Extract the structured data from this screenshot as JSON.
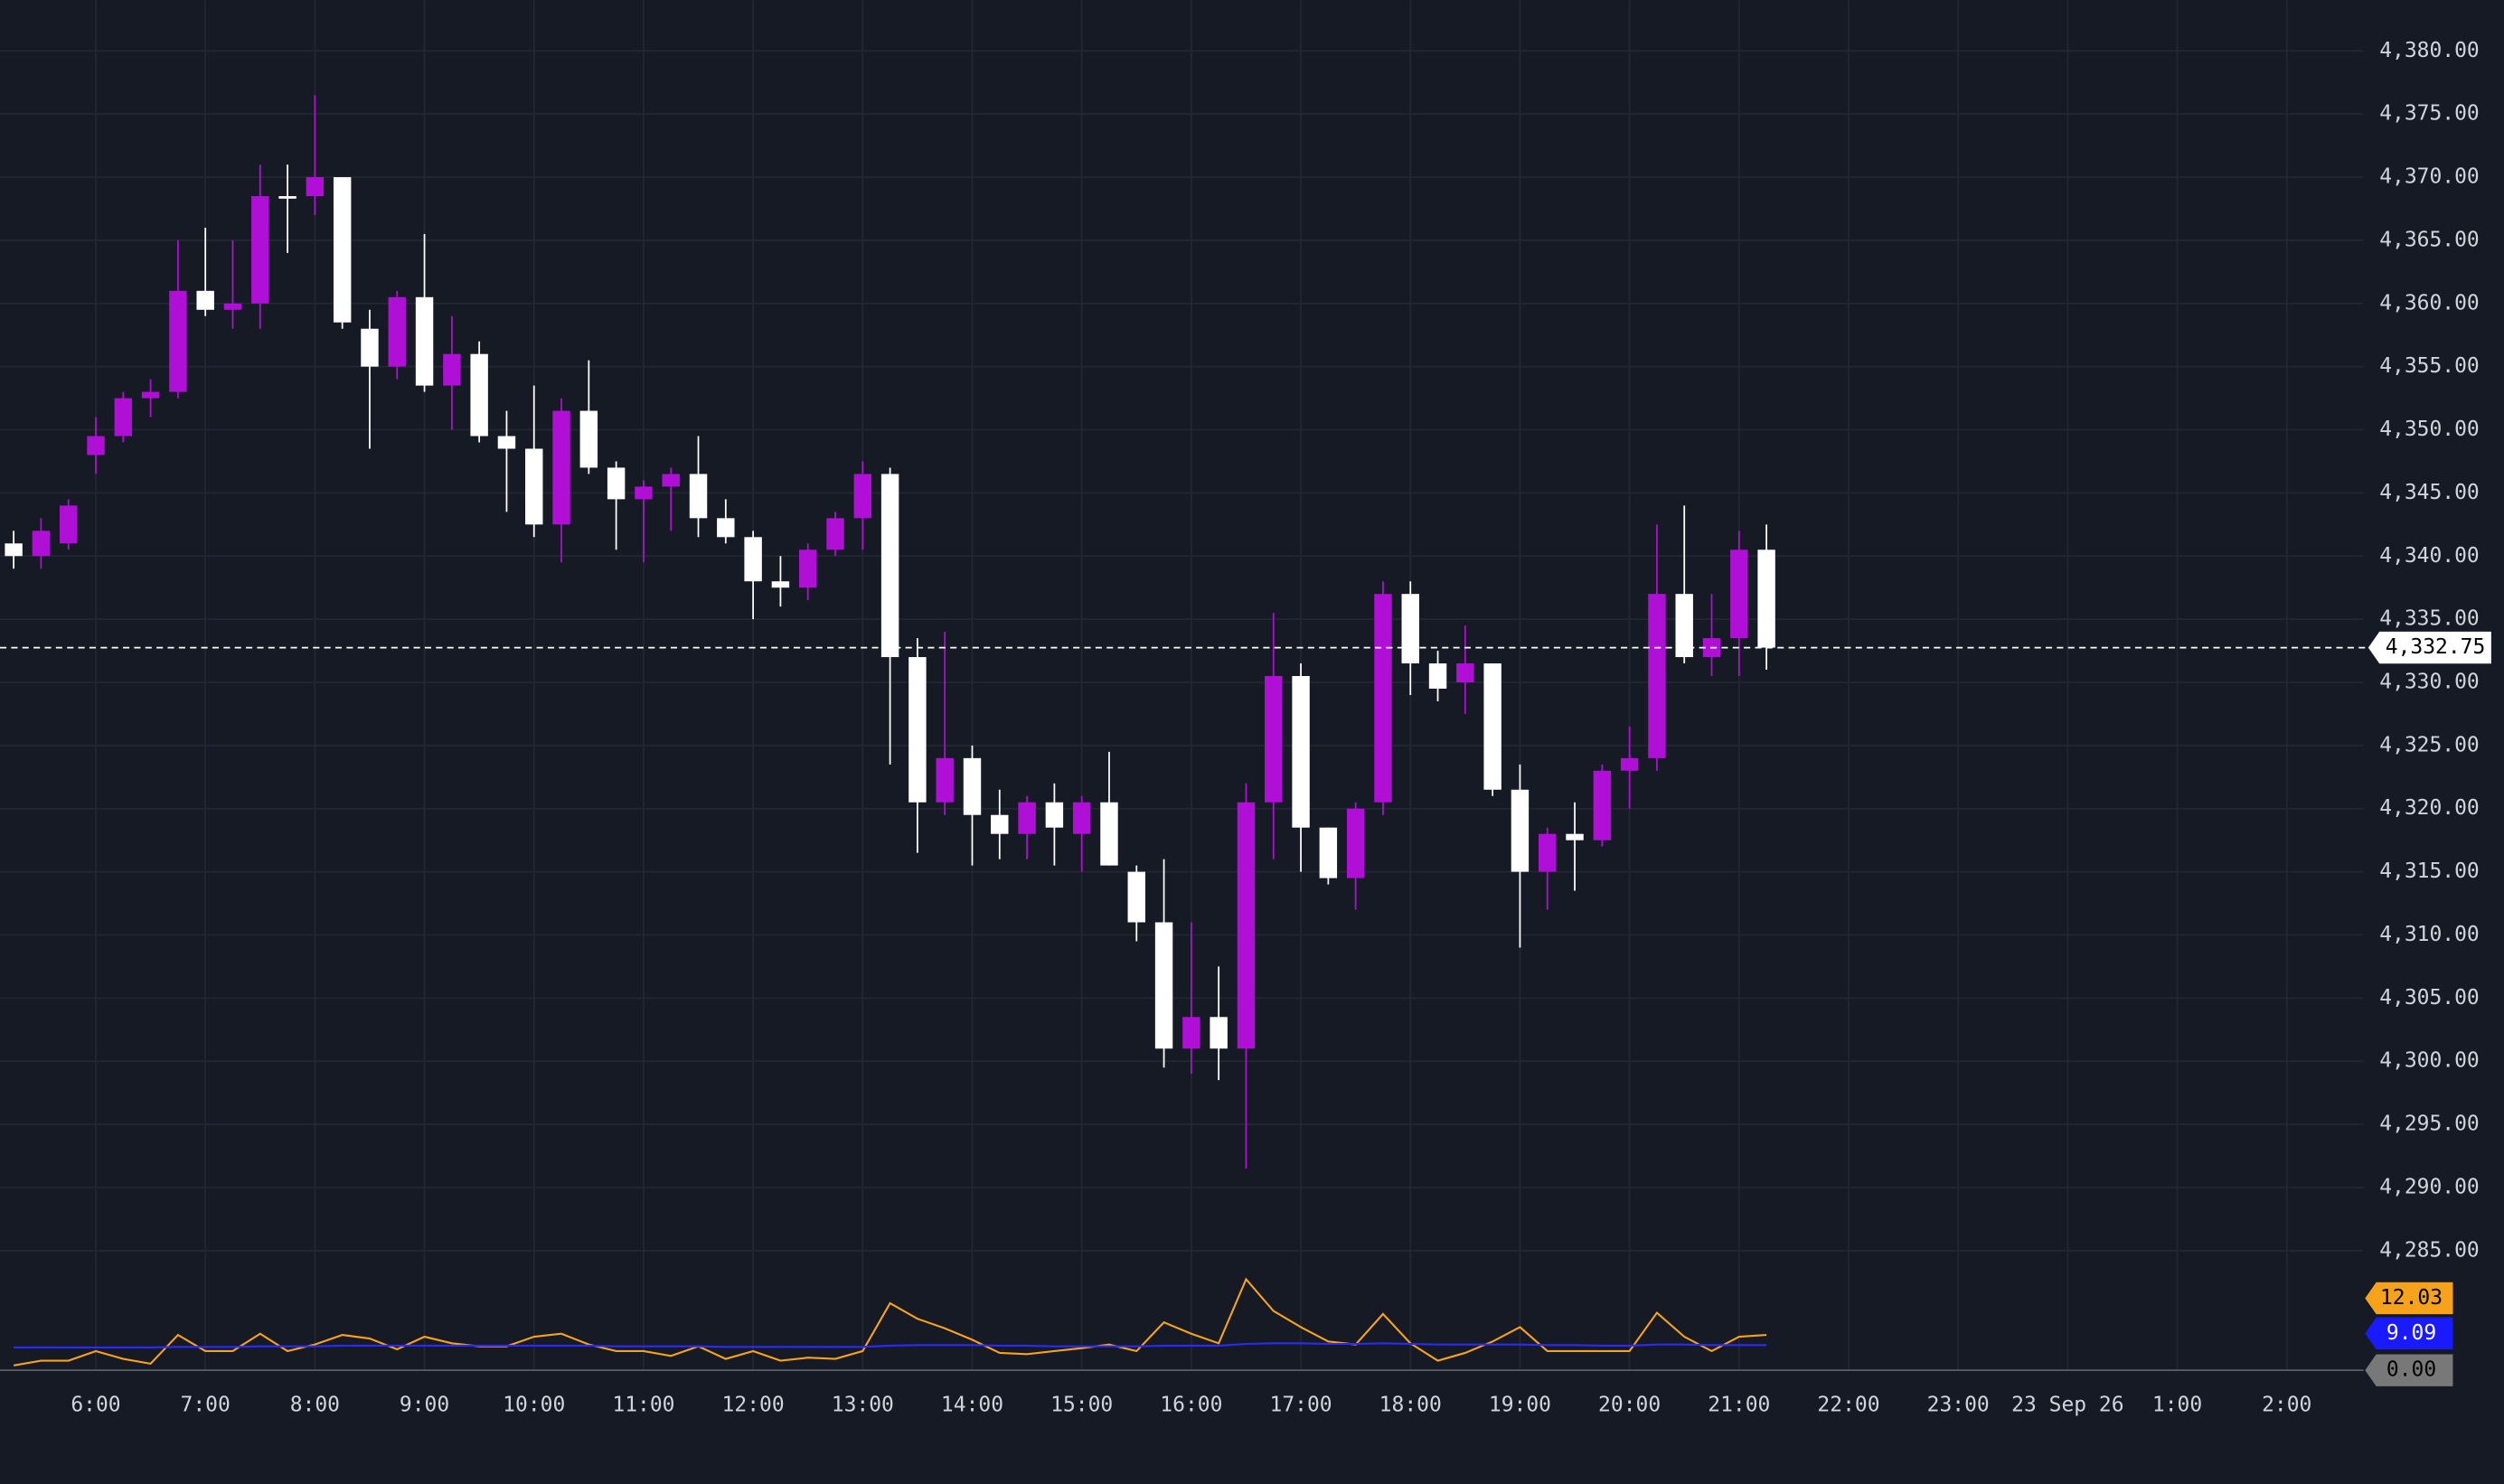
{
  "chart_data": {
    "type": "candlestick",
    "up_color": "#b00fd6",
    "down_color": "#ffffff",
    "open": [
      4341,
      4340,
      4341,
      4348,
      4349.5,
      4352.5,
      4353,
      4361,
      4359.5,
      4360,
      4368.5,
      4368.5,
      4370,
      4358,
      4355,
      4360.5,
      4353.5,
      4356,
      4349.5,
      4348.5,
      4342.5,
      4351.5,
      4347,
      4344.5,
      4345.5,
      4346.5,
      4343,
      4341.5,
      4338,
      4337.5,
      4340.5,
      4343,
      4346.5,
      4332,
      4320.5,
      4324,
      4319.5,
      4318,
      4320.5,
      4318,
      4320.5,
      4315,
      4311,
      4301,
      4303.5,
      4301,
      4320.5,
      4330.5,
      4318.5,
      4314.5,
      4320.5,
      4337,
      4331.5,
      4330,
      4331.5,
      4321.5,
      4315,
      4318,
      4317.5,
      4323,
      4324,
      4337,
      4332,
      4333.5,
      4340.5
    ],
    "high": [
      4342,
      4343,
      4344.5,
      4351,
      4353,
      4354,
      4365,
      4366,
      4365,
      4371,
      4371,
      4376.5,
      4370,
      4359.5,
      4361,
      4365.5,
      4359,
      4357,
      4351.5,
      4353.5,
      4352.5,
      4355.5,
      4347.5,
      4346,
      4347,
      4349.5,
      4344.5,
      4342,
      4340,
      4341,
      4343.5,
      4347.5,
      4347,
      4333.5,
      4334,
      4325,
      4321.5,
      4321,
      4322,
      4321,
      4324.5,
      4315.5,
      4316,
      4311,
      4307.5,
      4322,
      4335.5,
      4331.5,
      4318.5,
      4320.5,
      4338,
      4338,
      4332.5,
      4334.5,
      4331.5,
      4323.5,
      4318.5,
      4320.5,
      4323.5,
      4326.5,
      4342.5,
      4344,
      4337,
      4342,
      4342.5
    ],
    "low": [
      4339,
      4339,
      4340.5,
      4346.5,
      4349,
      4351,
      4352.5,
      4359,
      4358,
      4358,
      4364,
      4367,
      4358,
      4348.5,
      4354,
      4353,
      4350,
      4349,
      4343.5,
      4341.5,
      4339.5,
      4346.5,
      4340.5,
      4339.5,
      4342,
      4341.5,
      4341,
      4335,
      4336,
      4336.5,
      4340,
      4340.5,
      4323.5,
      4316.5,
      4319.5,
      4315.5,
      4316,
      4316,
      4315.5,
      4315,
      4315.5,
      4309.5,
      4299.5,
      4299,
      4298.5,
      4291.5,
      4316,
      4315,
      4314,
      4312,
      4319.5,
      4329,
      4328.5,
      4327.5,
      4321,
      4309,
      4312,
      4313.5,
      4317,
      4320,
      4323,
      4331.5,
      4330.5,
      4330.5,
      4331
    ],
    "close": [
      4340,
      4342,
      4344,
      4349.5,
      4352.5,
      4353,
      4361,
      4359.5,
      4360,
      4368.5,
      4368.3,
      4370,
      4358.5,
      4355,
      4360.5,
      4353.5,
      4356,
      4349.5,
      4348.5,
      4342.5,
      4351.5,
      4347,
      4344.5,
      4345.5,
      4346.5,
      4343,
      4341.5,
      4338,
      4337.5,
      4340.5,
      4343,
      4346.5,
      4332,
      4320.5,
      4324,
      4319.5,
      4318,
      4320.5,
      4318.5,
      4320.5,
      4315.5,
      4311,
      4301,
      4303.5,
      4301,
      4320.5,
      4330.5,
      4318.5,
      4314.5,
      4320,
      4337,
      4331.5,
      4329.5,
      4331.5,
      4321.5,
      4315,
      4318,
      4317.5,
      4323,
      4324,
      4337,
      4332,
      4333.5,
      4340.5,
      4332.75
    ],
    "ylim": [
      4284,
      4384
    ],
    "yticks": [
      {
        "value": 4285,
        "label": "4,285.00"
      },
      {
        "value": 4290,
        "label": "4,290.00"
      },
      {
        "value": 4295,
        "label": "4,295.00"
      },
      {
        "value": 4300,
        "label": "4,300.00"
      },
      {
        "value": 4305,
        "label": "4,305.00"
      },
      {
        "value": 4310,
        "label": "4,310.00"
      },
      {
        "value": 4315,
        "label": "4,315.00"
      },
      {
        "value": 4320,
        "label": "4,320.00"
      },
      {
        "value": 4325,
        "label": "4,325.00"
      },
      {
        "value": 4330,
        "label": "4,330.00"
      },
      {
        "value": 4335,
        "label": "4,335.00"
      },
      {
        "value": 4340,
        "label": "4,340.00"
      },
      {
        "value": 4345,
        "label": "4,345.00"
      },
      {
        "value": 4350,
        "label": "4,350.00"
      },
      {
        "value": 4355,
        "label": "4,355.00"
      },
      {
        "value": 4360,
        "label": "4,360.00"
      },
      {
        "value": 4365,
        "label": "4,365.00"
      },
      {
        "value": 4370,
        "label": "4,370.00"
      },
      {
        "value": 4375,
        "label": "4,375.00"
      },
      {
        "value": 4380,
        "label": "4,380.00"
      }
    ],
    "last_price": {
      "value": 4332.75,
      "label": "4,332.75"
    },
    "xtick_labels": [
      "6:00",
      "7:00",
      "8:00",
      "9:00",
      "10:00",
      "11:00",
      "12:00",
      "13:00",
      "14:00",
      "15:00",
      "16:00",
      "17:00",
      "18:00",
      "19:00",
      "20:00",
      "21:00",
      "22:00",
      "23:00",
      "23 Sep 26",
      "1:00",
      "2:00"
    ],
    "grid": true,
    "volume": {
      "type": "line",
      "ylim": [
        0,
        16
      ],
      "series": [
        {
          "color": "#f7a21b",
          "values": [
            0.8,
            1.6,
            1.6,
            3.2,
            1.9,
            1.1,
            5.9,
            3.2,
            3.2,
            6.1,
            3.2,
            4.3,
            5.9,
            5.3,
            3.5,
            5.6,
            4.5,
            4.0,
            4.0,
            5.6,
            6.1,
            4.3,
            3.2,
            3.2,
            2.4,
            4.0,
            1.9,
            3.2,
            1.6,
            2.1,
            1.9,
            3.2,
            11.2,
            8.6,
            7.0,
            5.1,
            2.9,
            2.7,
            3.2,
            3.7,
            4.3,
            3.2,
            8.0,
            6.1,
            4.5,
            15.2,
            9.9,
            7.2,
            4.8,
            4.3,
            9.4,
            4.5,
            1.6,
            2.9,
            4.8,
            7.2,
            3.2,
            3.2,
            3.2,
            3.2,
            9.6,
            5.6,
            3.2,
            5.6,
            5.9
          ]
        },
        {
          "color": "#2a2aff",
          "values": [
            3.8,
            3.8,
            3.8,
            3.8,
            3.8,
            3.8,
            3.9,
            3.9,
            3.9,
            4.0,
            4.0,
            4.0,
            4.1,
            4.1,
            4.1,
            4.1,
            4.1,
            4.1,
            4.1,
            4.1,
            4.1,
            4.1,
            4.0,
            4.0,
            4.0,
            4.0,
            3.9,
            3.9,
            3.9,
            3.9,
            3.9,
            3.9,
            4.1,
            4.2,
            4.2,
            4.2,
            4.1,
            4.1,
            4.0,
            4.0,
            4.0,
            4.0,
            4.1,
            4.1,
            4.1,
            4.4,
            4.5,
            4.5,
            4.4,
            4.4,
            4.5,
            4.4,
            4.3,
            4.3,
            4.3,
            4.3,
            4.2,
            4.2,
            4.1,
            4.1,
            4.3,
            4.3,
            4.2,
            4.2,
            4.2
          ]
        }
      ],
      "badges": [
        {
          "value": 12.03,
          "label": "12.03",
          "color": "#f7a21b",
          "text_color": "#000000"
        },
        {
          "value": 9.09,
          "label": "9.09",
          "color": "#1a1aff",
          "text_color": "#ffffff"
        },
        {
          "value": 0,
          "label": "0.00",
          "color": "#787878",
          "text_color": "#000000"
        }
      ]
    }
  }
}
